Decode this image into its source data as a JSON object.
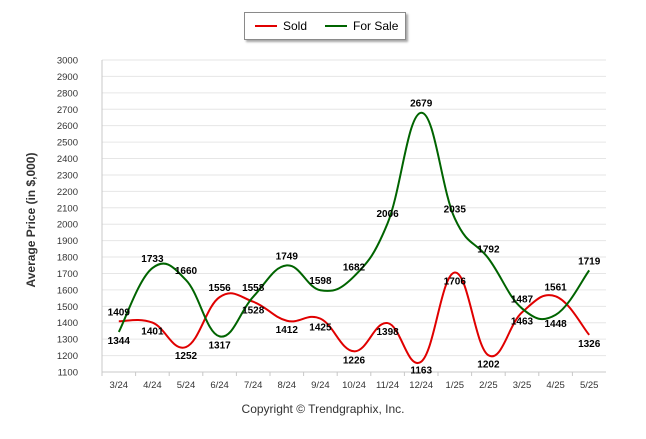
{
  "chart_data": {
    "type": "line",
    "categories": [
      "3/24",
      "4/24",
      "5/24",
      "6/24",
      "7/24",
      "8/24",
      "9/24",
      "10/24",
      "11/24",
      "12/24",
      "1/25",
      "2/25",
      "3/25",
      "4/25",
      "5/25"
    ],
    "series": [
      {
        "name": "Sold",
        "color": "#e00000",
        "values": [
          1409,
          1401,
          1252,
          1556,
          1528,
          1412,
          1425,
          1226,
          1398,
          1163,
          1706,
          1202,
          1463,
          1561,
          1326
        ]
      },
      {
        "name": "For Sale",
        "color": "#006400",
        "values": [
          1344,
          1733,
          1660,
          1317,
          1558,
          1749,
          1598,
          1682,
          2006,
          2679,
          2035,
          1792,
          1487,
          1448,
          1719
        ]
      }
    ],
    "ylabel": "Average Price (in $,000)",
    "xlabel": "",
    "ylim": [
      1100,
      3000
    ],
    "yticks": [
      1100,
      1200,
      1300,
      1400,
      1500,
      1600,
      1700,
      1800,
      1900,
      2000,
      2100,
      2200,
      2300,
      2400,
      2500,
      2600,
      2700,
      2800,
      2900,
      3000
    ],
    "grid": true,
    "legend_position": "top-center"
  },
  "footer": {
    "copyright": "Copyright © Trendgraphix, Inc."
  }
}
